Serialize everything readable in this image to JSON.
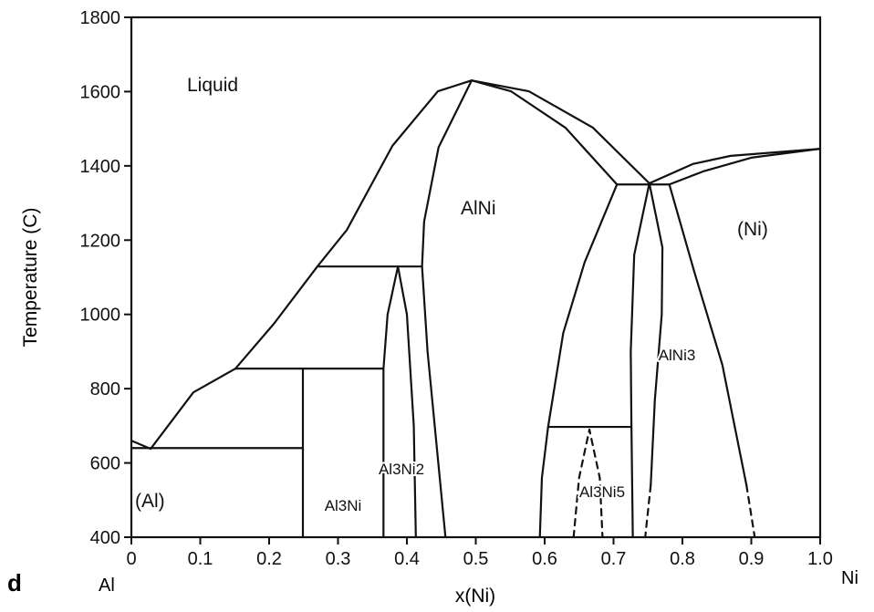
{
  "chart_data": {
    "type": "line",
    "panel_label": "d",
    "xlabel": "x(Ni)",
    "ylabel": "Temperature (C)",
    "x_end_labels": {
      "left": "Al",
      "right": "Ni"
    },
    "xlim": [
      0,
      1.0
    ],
    "ylim": [
      400,
      1800
    ],
    "xticks": [
      "0",
      "0.1",
      "0.2",
      "0.3",
      "0.4",
      "0.5",
      "0.6",
      "0.7",
      "0.8",
      "0.9",
      "1.0"
    ],
    "yticks": [
      "400",
      "600",
      "800",
      "1000",
      "1200",
      "1400",
      "1600",
      "1800"
    ],
    "grid": false,
    "phase_labels": [
      {
        "text": "Liquid"
      },
      {
        "text": "AlNi"
      },
      {
        "text": "(Ni)"
      },
      {
        "text": "AlNi3"
      },
      {
        "text": "Al3Ni5"
      },
      {
        "text": "Al3Ni2"
      },
      {
        "text": "Al3Ni"
      },
      {
        "text": "(Al)"
      }
    ],
    "series": [
      {
        "style": "solid",
        "points": [
          [
            0,
            660
          ],
          [
            0.028,
            638
          ],
          [
            0.09,
            790
          ],
          [
            0.151,
            854
          ],
          [
            0.207,
            975
          ],
          [
            0.27,
            1129
          ],
          [
            0.313,
            1228
          ],
          [
            0.379,
            1454
          ],
          [
            0.445,
            1601
          ],
          [
            0.494,
            1630
          ]
        ]
      },
      {
        "style": "solid",
        "points": [
          [
            0.494,
            1630
          ],
          [
            0.577,
            1601
          ],
          [
            0.67,
            1503
          ],
          [
            0.752,
            1353
          ]
        ]
      },
      {
        "style": "solid",
        "points": [
          [
            0.494,
            1630
          ],
          [
            0.551,
            1601
          ],
          [
            0.63,
            1503
          ],
          [
            0.705,
            1350
          ]
        ]
      },
      {
        "style": "solid",
        "points": [
          [
            0.705,
            1350
          ],
          [
            0.781,
            1350
          ]
        ]
      },
      {
        "style": "solid",
        "points": [
          [
            0.752,
            1353
          ],
          [
            0.815,
            1405
          ],
          [
            0.87,
            1427
          ],
          [
            1.0,
            1446
          ]
        ]
      },
      {
        "style": "solid",
        "points": [
          [
            0.781,
            1350
          ],
          [
            0.83,
            1385
          ],
          [
            0.9,
            1422
          ],
          [
            1.0,
            1446
          ]
        ]
      },
      {
        "style": "solid",
        "points": [
          [
            0.781,
            1350
          ],
          [
            0.818,
            1110
          ],
          [
            0.858,
            864
          ],
          [
            0.893,
            540
          ]
        ]
      },
      {
        "style": "dashed",
        "points": [
          [
            0.893,
            540
          ],
          [
            0.905,
            400
          ]
        ]
      },
      {
        "style": "solid",
        "points": [
          [
            0.752,
            1353
          ],
          [
            0.73,
            1160
          ],
          [
            0.725,
            900
          ],
          [
            0.726,
            697
          ],
          [
            0.728,
            400
          ]
        ]
      },
      {
        "style": "solid",
        "points": [
          [
            0.752,
            1353
          ],
          [
            0.771,
            1180
          ],
          [
            0.77,
            1000
          ],
          [
            0.76,
            770
          ],
          [
            0.754,
            540
          ]
        ]
      },
      {
        "style": "dashed",
        "points": [
          [
            0.754,
            540
          ],
          [
            0.746,
            400
          ]
        ]
      },
      {
        "style": "solid",
        "points": [
          [
            0.705,
            1350
          ],
          [
            0.658,
            1140
          ],
          [
            0.627,
            950
          ],
          [
            0.605,
            697
          ],
          [
            0.596,
            560
          ],
          [
            0.593,
            400
          ]
        ]
      },
      {
        "style": "solid",
        "points": [
          [
            0.605,
            697
          ],
          [
            0.726,
            697
          ]
        ]
      },
      {
        "style": "dashed",
        "points": [
          [
            0.642,
            400
          ],
          [
            0.65,
            560
          ],
          [
            0.665,
            690
          ],
          [
            0.68,
            560
          ],
          [
            0.684,
            400
          ]
        ]
      },
      {
        "style": "solid",
        "points": [
          [
            0.494,
            1630
          ],
          [
            0.446,
            1450
          ],
          [
            0.425,
            1250
          ],
          [
            0.422,
            1129
          ],
          [
            0.43,
            900
          ],
          [
            0.443,
            650
          ],
          [
            0.456,
            400
          ]
        ]
      },
      {
        "style": "solid",
        "points": [
          [
            0.27,
            1129
          ],
          [
            0.422,
            1129
          ]
        ]
      },
      {
        "style": "solid",
        "points": [
          [
            0.151,
            854
          ],
          [
            0.366,
            854
          ]
        ]
      },
      {
        "style": "solid",
        "points": [
          [
            0,
            640
          ],
          [
            0.249,
            640
          ]
        ]
      },
      {
        "style": "solid",
        "points": [
          [
            0.249,
            854
          ],
          [
            0.249,
            400
          ]
        ]
      },
      {
        "style": "solid",
        "points": [
          [
            0.366,
            400
          ],
          [
            0.366,
            854
          ],
          [
            0.372,
            1000
          ],
          [
            0.387,
            1129
          ]
        ]
      },
      {
        "style": "solid",
        "points": [
          [
            0.387,
            1129
          ],
          [
            0.4,
            1000
          ],
          [
            0.41,
            700
          ],
          [
            0.413,
            400
          ]
        ]
      }
    ]
  }
}
